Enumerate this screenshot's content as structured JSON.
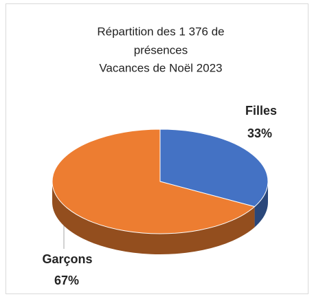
{
  "chart_data": {
    "type": "pie",
    "title": [
      "Répartition des 1 376 de",
      "présences",
      "Vacances de Noël 2023"
    ],
    "categories": [
      "Filles",
      "Garçons"
    ],
    "values": [
      33,
      67
    ],
    "value_labels": [
      "33%",
      "67%"
    ],
    "colors": [
      "#4472c4",
      "#ed7d31"
    ]
  }
}
